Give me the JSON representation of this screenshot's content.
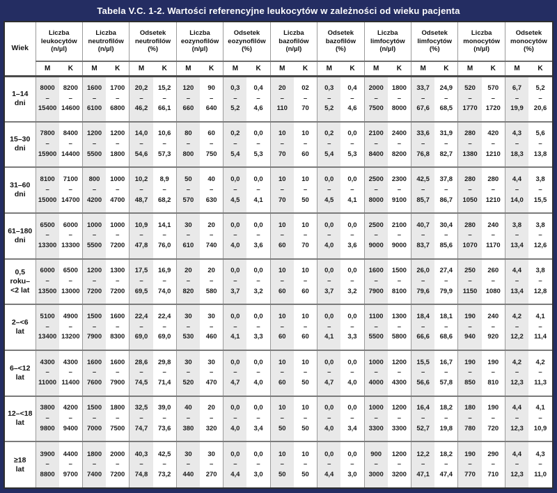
{
  "title": "Tabela V.C. 1-2. Wartości referencyjne leukocytów w zależności od wieku pacjenta",
  "table": {
    "age_header": "Wiek",
    "sub_m": "M",
    "sub_k": "K",
    "groups": [
      {
        "label": "Liczba\nleukocytów\n(n/µl)"
      },
      {
        "label": "Liczba\nneutrofilów\n(n/µl)"
      },
      {
        "label": "Odsetek\nneutrofilów\n(%)"
      },
      {
        "label": "Liczba\neozynofilów\n(n/µl)"
      },
      {
        "label": "Odsetek\neozynofilów\n(%)"
      },
      {
        "label": "Liczba\nbazofilów\n(n/µl)"
      },
      {
        "label": "Odsetek\nbazofilów\n(%)"
      },
      {
        "label": "Liczba\nlimfocytów\n(n/µl)"
      },
      {
        "label": "Odsetek\nlimfocytów\n(%)"
      },
      {
        "label": "Liczba\nmonocytów\n(n/µl)"
      },
      {
        "label": "Odsetek\nmonocytów\n(%)"
      }
    ],
    "rows": [
      {
        "age": "1–14\ndni",
        "cells": [
          "8000\n–\n15400",
          "8200\n–\n14600",
          "1600\n–\n6100",
          "1700\n–\n6800",
          "20,2\n–\n46,2",
          "15,2\n–\n66,1",
          "120\n–\n660",
          "90\n–\n640",
          "0,3\n–\n5,2",
          "0,4\n–\n4,6",
          "20\n–\n110",
          "02\n–\n70",
          "0,3\n–\n5,2",
          "0,4\n–\n4,6",
          "2000\n–\n7500",
          "1800\n–\n8000",
          "33,7\n–\n67,6",
          "24,9\n–\n68,5",
          "520\n–\n1770",
          "570\n–\n1720",
          "6,7\n–\n19,9",
          "5,2\n–\n20,6"
        ]
      },
      {
        "age": "15–30\ndni",
        "cells": [
          "7800\n–\n15900",
          "8400\n–\n14400",
          "1200\n–\n5500",
          "1200\n–\n1800",
          "14,0\n–\n54,6",
          "10,6\n–\n57,3",
          "80\n–\n800",
          "60\n–\n750",
          "0,2\n–\n5,4",
          "0,0\n–\n5,3",
          "10\n–\n70",
          "10\n–\n60",
          "0,2\n–\n5,4",
          "0,0\n–\n5,3",
          "2100\n–\n8400",
          "2400\n–\n8200",
          "33,6\n–\n76,8",
          "31,9\n–\n82,7",
          "280\n–\n1380",
          "420\n–\n1210",
          "4,3\n–\n18,3",
          "5,6\n–\n13,8"
        ]
      },
      {
        "age": "31–60\ndni",
        "cells": [
          "8100\n–\n15000",
          "7100\n–\n14700",
          "800\n–\n4200",
          "1000\n–\n4700",
          "10,2\n–\n48,7",
          "8,9\n–\n68,2",
          "50\n–\n570",
          "40\n–\n630",
          "0,0\n–\n4,5",
          "0,0\n–\n4,1",
          "10\n–\n70",
          "10\n–\n50",
          "0,0\n–\n4,5",
          "0,0\n–\n4,1",
          "2500\n–\n8000",
          "2300\n–\n9100",
          "42,5\n–\n85,7",
          "37,8\n–\n86,7",
          "280\n–\n1050",
          "280\n–\n1210",
          "4,4\n–\n14,0",
          "3,8\n–\n15,5"
        ]
      },
      {
        "age": "61–180\ndni",
        "cells": [
          "6500\n–\n13300",
          "6000\n–\n13300",
          "1000\n–\n5500",
          "1000\n–\n7200",
          "10,9\n–\n47,8",
          "14,1\n–\n76,0",
          "30\n–\n610",
          "20\n–\n740",
          "0,0\n–\n4,0",
          "0,0\n–\n3,6",
          "10\n–\n60",
          "10\n–\n70",
          "0,0\n–\n4,0",
          "0,0\n–\n3,6",
          "2500\n–\n9000",
          "2100\n–\n9000",
          "40,7\n–\n83,7",
          "30,4\n–\n85,6",
          "280\n–\n1070",
          "240\n–\n1170",
          "3,8\n–\n13,4",
          "3,8\n–\n12,6"
        ]
      },
      {
        "age": "0,5\nroku–\n<2 lat",
        "cells": [
          "6000\n–\n13500",
          "6500\n–\n13000",
          "1200\n–\n7200",
          "1300\n–\n7200",
          "17,5\n–\n69,5",
          "16,9\n–\n74,0",
          "20\n–\n820",
          "20\n–\n580",
          "0,0\n–\n3,7",
          "0,0\n–\n3,2",
          "10\n–\n60",
          "10\n–\n60",
          "0,0\n–\n3,7",
          "0,0\n–\n3,2",
          "1600\n–\n7900",
          "1500\n–\n8100",
          "26,0\n–\n79,6",
          "27,4\n–\n79,9",
          "250\n–\n1150",
          "260\n–\n1080",
          "4,4\n–\n13,4",
          "3,8\n–\n12,8"
        ]
      },
      {
        "age": "2–<6\nlat",
        "cells": [
          "5100\n–\n13400",
          "4900\n–\n13200",
          "1500\n–\n7900",
          "1600\n–\n8300",
          "22,4\n–\n69,0",
          "22,4\n–\n69,0",
          "30\n–\n530",
          "30\n–\n460",
          "0,0\n–\n4,1",
          "0,0\n–\n3,3",
          "10\n–\n60",
          "10\n–\n60",
          "0,0\n–\n4,1",
          "0,0\n–\n3,3",
          "1100\n–\n5500",
          "1300\n–\n5800",
          "18,4\n–\n66,6",
          "18,1\n–\n68,6",
          "190\n–\n940",
          "240\n–\n920",
          "4,2\n–\n12,2",
          "4,1\n–\n11,4"
        ]
      },
      {
        "age": "6–<12\nlat",
        "cells": [
          "4300\n–\n11000",
          "4300\n–\n11400",
          "1600\n–\n7600",
          "1600\n–\n7900",
          "28,6\n–\n74,5",
          "29,8\n–\n71,4",
          "30\n–\n520",
          "30\n–\n470",
          "0,0\n–\n4,7",
          "0,0\n–\n4,0",
          "10\n–\n60",
          "10\n–\n50",
          "0,0\n–\n4,7",
          "0,0\n–\n4,0",
          "1000\n–\n4000",
          "1200\n–\n4300",
          "15,5\n–\n56,6",
          "16,7\n–\n57,8",
          "190\n–\n850",
          "190\n–\n810",
          "4,2\n–\n12,3",
          "4,2\n–\n11,3"
        ]
      },
      {
        "age": "12–<18\nlat",
        "cells": [
          "3800\n–\n9800",
          "4200\n–\n9400",
          "1500\n–\n7000",
          "1800\n–\n7500",
          "32,5\n–\n74,7",
          "39,0\n–\n73,6",
          "40\n–\n380",
          "20\n–\n320",
          "0,0\n–\n4,0",
          "0,0\n–\n3,4",
          "10\n–\n50",
          "10\n–\n50",
          "0,0\n–\n4,0",
          "0,0\n–\n3,4",
          "1000\n–\n3300",
          "1200\n–\n3300",
          "16,4\n–\n52,7",
          "18,2\n–\n19,8",
          "180\n–\n780",
          "190\n–\n720",
          "4,4\n–\n12,3",
          "4,1\n–\n10,9"
        ]
      },
      {
        "age": "≥18\nlat",
        "cells": [
          "3900\n–\n8800",
          "4400\n–\n9700",
          "1800\n–\n7400",
          "2000\n–\n7200",
          "40,3\n–\n74,8",
          "42,5\n–\n73,2",
          "30\n–\n440",
          "30\n–\n270",
          "0,0\n–\n4,4",
          "0,0\n–\n3,0",
          "10\n–\n50",
          "10\n–\n50",
          "0,0\n–\n4,4",
          "0,0\n–\n3,0",
          "900\n–\n3000",
          "1200\n–\n3200",
          "12,2\n–\n47,1",
          "18,2\n–\n47,4",
          "190\n–\n770",
          "290\n–\n710",
          "4,4\n–\n12,3",
          "4,3\n–\n11,0"
        ]
      }
    ]
  }
}
